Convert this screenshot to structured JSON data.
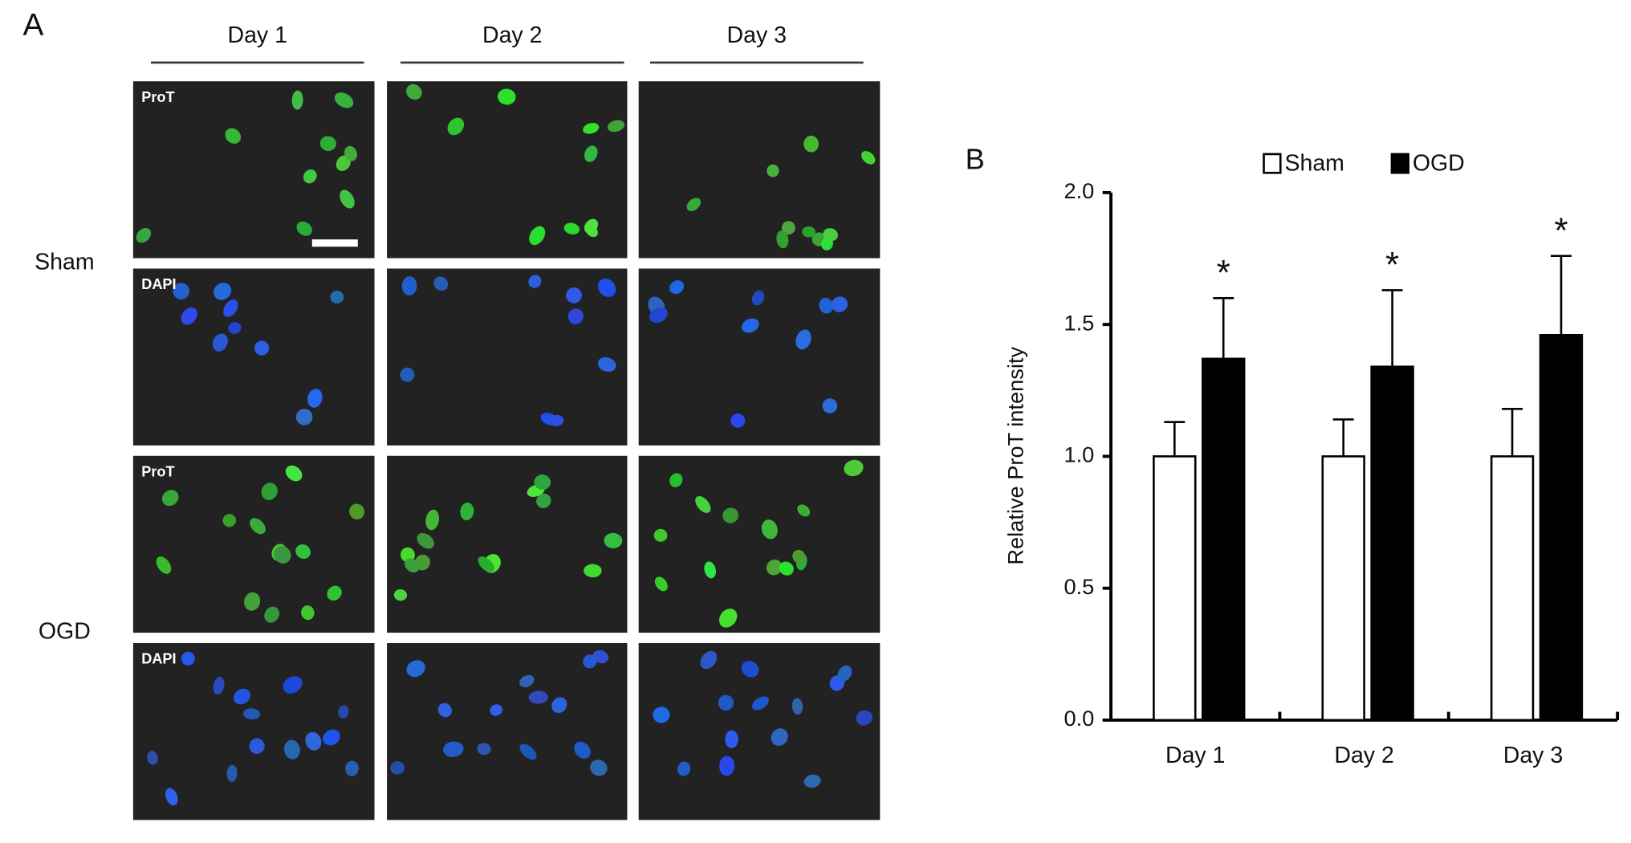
{
  "panel_a": {
    "label": "A",
    "columns": [
      "Day 1",
      "Day 2",
      "Day 3"
    ],
    "rows": [
      "Sham",
      "OGD"
    ],
    "image_labels": [
      "ProT",
      "DAPI",
      "ProT",
      "DAPI"
    ]
  },
  "chart_data": {
    "type": "bar",
    "panel_label": "B",
    "y_label": "Relative ProT intensity",
    "categories": [
      "Day 1",
      "Day 2",
      "Day 3"
    ],
    "series": [
      {
        "name": "Sham",
        "color": "#ffffff",
        "values": [
          1.0,
          1.0,
          1.0
        ],
        "errors": [
          0.13,
          0.14,
          0.18
        ]
      },
      {
        "name": "OGD",
        "color": "#000000",
        "values": [
          1.37,
          1.34,
          1.46
        ],
        "errors": [
          0.23,
          0.29,
          0.3
        ]
      }
    ],
    "annotations": [
      "*",
      "*",
      "*"
    ],
    "ylim": [
      0,
      2
    ],
    "yticks": [
      {
        "value": 0,
        "label": "0.0"
      },
      {
        "value": 0.5,
        "label": "0.5"
      },
      {
        "value": 1,
        "label": "1.0"
      },
      {
        "value": 1.5,
        "label": "1.5"
      },
      {
        "value": 2,
        "label": "2.0"
      }
    ],
    "legend": "top"
  }
}
